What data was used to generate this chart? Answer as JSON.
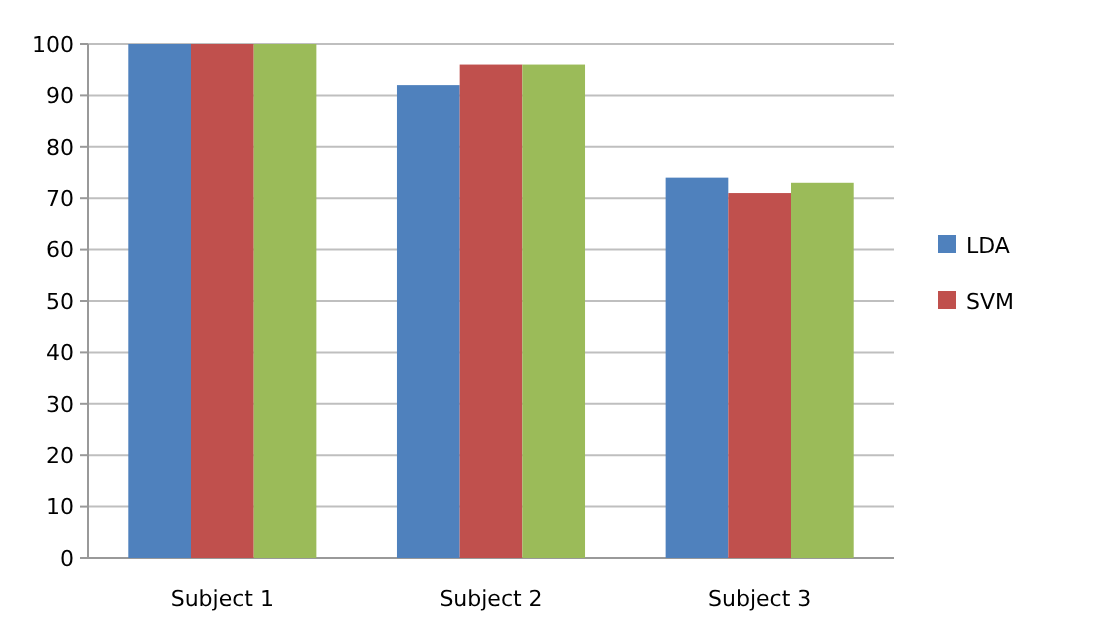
{
  "chart_data": {
    "type": "bar",
    "categories": [
      "Subject 1",
      "Subject 2",
      "Subject 3"
    ],
    "series": [
      {
        "name": "LDA",
        "color": "#4f81bd",
        "values": [
          100,
          92,
          74
        ]
      },
      {
        "name": "SVM",
        "color": "#c0504d",
        "values": [
          100,
          96,
          71
        ]
      },
      {
        "color": "#9bbb59",
        "values": [
          100,
          96,
          73
        ]
      }
    ],
    "ylim": [
      0,
      100
    ],
    "yticks": [
      0,
      10,
      20,
      30,
      40,
      50,
      60,
      70,
      80,
      90,
      100
    ],
    "grid": "y",
    "legend": "right"
  }
}
